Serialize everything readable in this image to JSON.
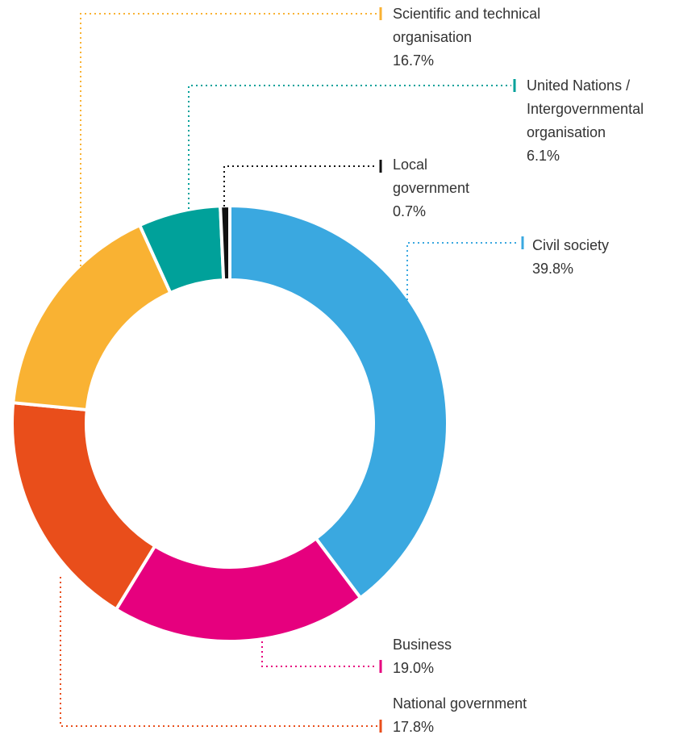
{
  "chart_data": {
    "type": "donut",
    "categories": [
      "Civil society",
      "Business",
      "National government",
      "Scientific and technical organisation",
      "United Nations / Intergovernmental organisation",
      "Local government"
    ],
    "values": [
      39.8,
      19.0,
      17.8,
      16.7,
      6.1,
      0.7
    ],
    "value_labels": [
      "39.8%",
      "19.0%",
      "17.8%",
      "16.7%",
      "6.1%",
      "0.7%"
    ],
    "colors": [
      "#3aa8e0",
      "#e6007e",
      "#e94e1b",
      "#f9b233",
      "#00a19a",
      "#111111"
    ]
  }
}
